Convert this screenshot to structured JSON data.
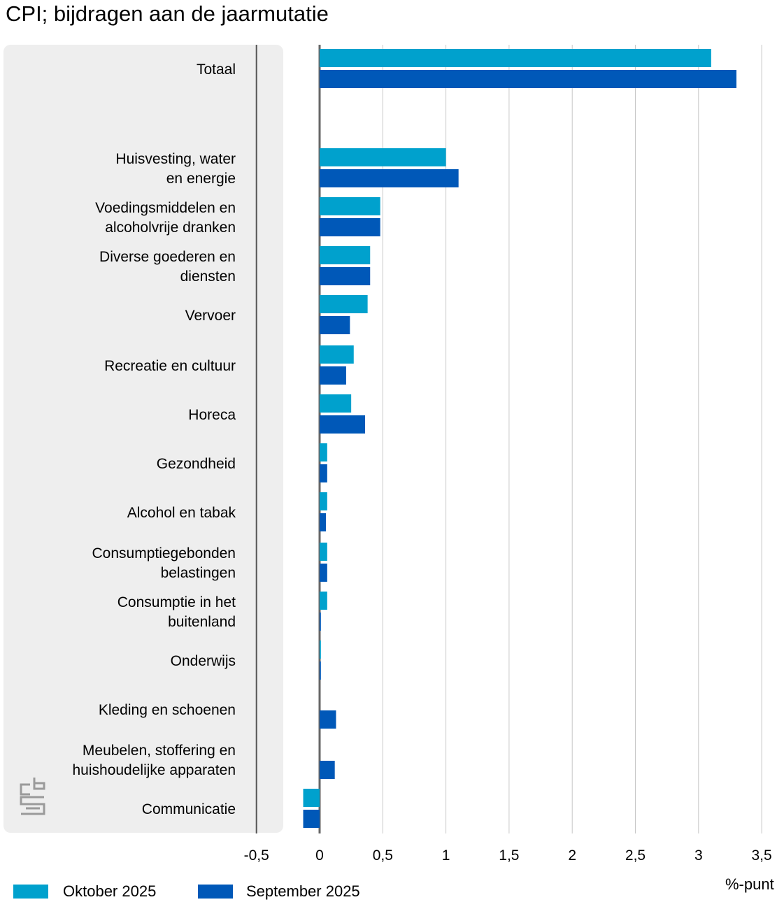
{
  "chart_data": {
    "type": "bar",
    "orientation": "horizontal",
    "title": "CPI; bijdragen aan de jaarmutatie",
    "xlabel": "%-punt",
    "xlim": [
      -0.5,
      3.5
    ],
    "xticks": [
      -0.5,
      0,
      0.5,
      1,
      1.5,
      2,
      2.5,
      3,
      3.5
    ],
    "xtick_labels": [
      "-0,5",
      "0",
      "0,5",
      "1",
      "1,5",
      "2",
      "2,5",
      "3",
      "3,5"
    ],
    "grid": true,
    "legend_position": "bottom-left",
    "categories": [
      [
        "Totaal"
      ],
      [
        "Huisvesting, water",
        "en energie"
      ],
      [
        "Voedingsmiddelen en",
        "alcoholvrije dranken"
      ],
      [
        "Diverse goederen en",
        "diensten"
      ],
      [
        "Vervoer"
      ],
      [
        "Recreatie en cultuur"
      ],
      [
        "Horeca"
      ],
      [
        "Gezondheid"
      ],
      [
        "Alcohol en tabak"
      ],
      [
        "Consumptiegebonden",
        "belastingen"
      ],
      [
        "Consumptie in het",
        "buitenland"
      ],
      [
        "Onderwijs"
      ],
      [
        "Kleding en schoenen"
      ],
      [
        "Meubelen, stoffering en",
        "huishoudelijke apparaten"
      ],
      [
        "Communicatie"
      ]
    ],
    "series": [
      {
        "name": "Oktober 2025",
        "color": "#00a1cd",
        "values": [
          3.1,
          1.0,
          0.48,
          0.4,
          0.38,
          0.27,
          0.25,
          0.06,
          0.06,
          0.06,
          0.06,
          0.01,
          0.0,
          0.0,
          -0.13
        ]
      },
      {
        "name": "September 2025",
        "color": "#0058b8",
        "values": [
          3.3,
          1.1,
          0.48,
          0.4,
          0.24,
          0.21,
          0.36,
          0.06,
          0.05,
          0.06,
          0.01,
          0.01,
          0.13,
          0.12,
          -0.13
        ]
      }
    ]
  },
  "legend": {
    "items": [
      {
        "label": "Oktober 2025",
        "color": "#00a1cd"
      },
      {
        "label": "September 2025",
        "color": "#0058b8"
      }
    ]
  },
  "logo_icon": "cbs-logo-icon"
}
